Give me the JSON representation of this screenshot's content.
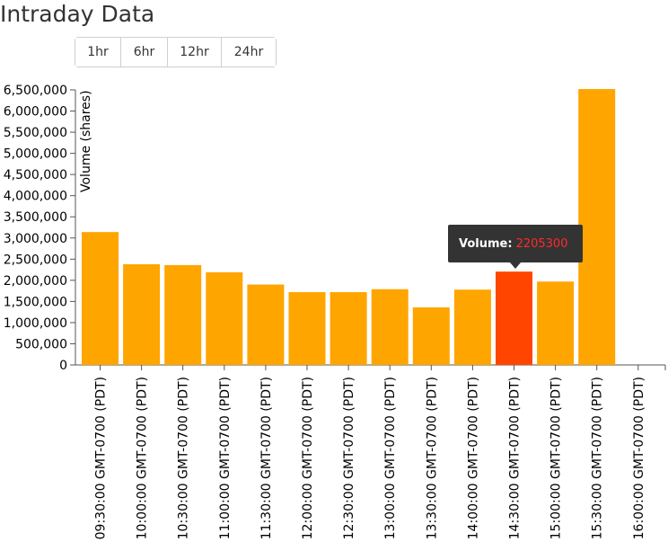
{
  "page": {
    "title": "Intraday Data"
  },
  "range_buttons": [
    {
      "label": "1hr"
    },
    {
      "label": "6hr"
    },
    {
      "label": "12hr"
    },
    {
      "label": "24hr"
    }
  ],
  "tooltip": {
    "label": "Volume:",
    "value": "2205300"
  },
  "chart_data": {
    "type": "bar",
    "ylabel": "Volume (shares)",
    "xlabel": "",
    "ylim": [
      0,
      6500000
    ],
    "yticks": [
      "0",
      "500,000",
      "1,000,000",
      "1,500,000",
      "2,000,000",
      "2,500,000",
      "3,000,000",
      "3,500,000",
      "4,000,000",
      "4,500,000",
      "5,000,000",
      "5,500,000",
      "6,000,000",
      "6,500,000"
    ],
    "categories": [
      "09:30:00 GMT-0700 (PDT)",
      "10:00:00 GMT-0700 (PDT)",
      "10:30:00 GMT-0700 (PDT)",
      "11:00:00 GMT-0700 (PDT)",
      "11:30:00 GMT-0700 (PDT)",
      "12:00:00 GMT-0700 (PDT)",
      "12:30:00 GMT-0700 (PDT)",
      "13:00:00 GMT-0700 (PDT)",
      "13:30:00 GMT-0700 (PDT)",
      "14:00:00 GMT-0700 (PDT)",
      "14:30:00 GMT-0700 (PDT)",
      "15:00:00 GMT-0700 (PDT)",
      "15:30:00 GMT-0700 (PDT)",
      "16:00:00 GMT-0700 (PDT)"
    ],
    "values": [
      3140000,
      2380000,
      2360000,
      2190000,
      1900000,
      1720000,
      1720000,
      1790000,
      1360000,
      1780000,
      2205300,
      1970000,
      6520000,
      0
    ],
    "highlight_index": 10,
    "colors": {
      "bar": "#ffa500",
      "highlight": "#ff4500",
      "axis": "#555555"
    }
  }
}
